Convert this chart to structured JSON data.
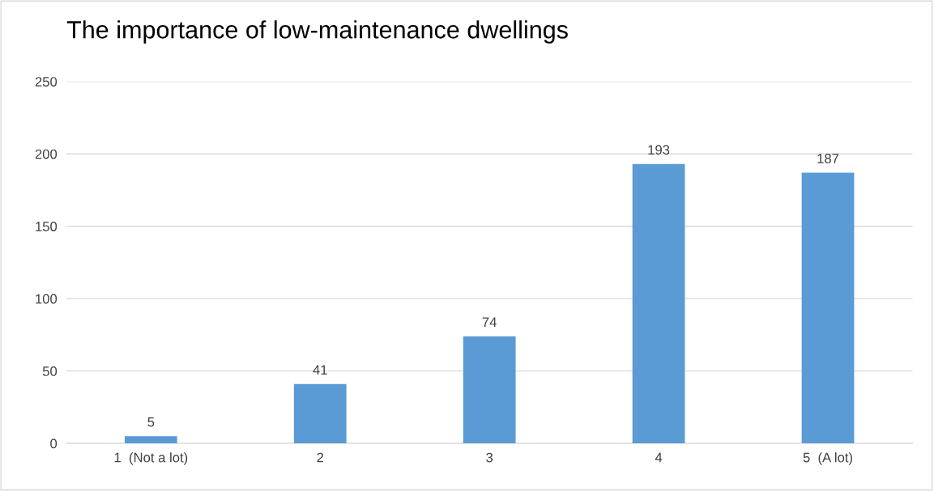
{
  "chart_data": {
    "type": "bar",
    "title": "The importance of low-maintenance dwellings",
    "categories": [
      "1  (Not a lot)",
      "2",
      "3",
      "4",
      "5  (A lot)"
    ],
    "values": [
      5,
      41,
      74,
      193,
      187
    ],
    "color": "#5b9bd5",
    "ylim": [
      0,
      250
    ],
    "yticks": [
      0,
      50,
      100,
      150,
      200,
      250
    ],
    "grid": "y",
    "data_labels": true
  }
}
